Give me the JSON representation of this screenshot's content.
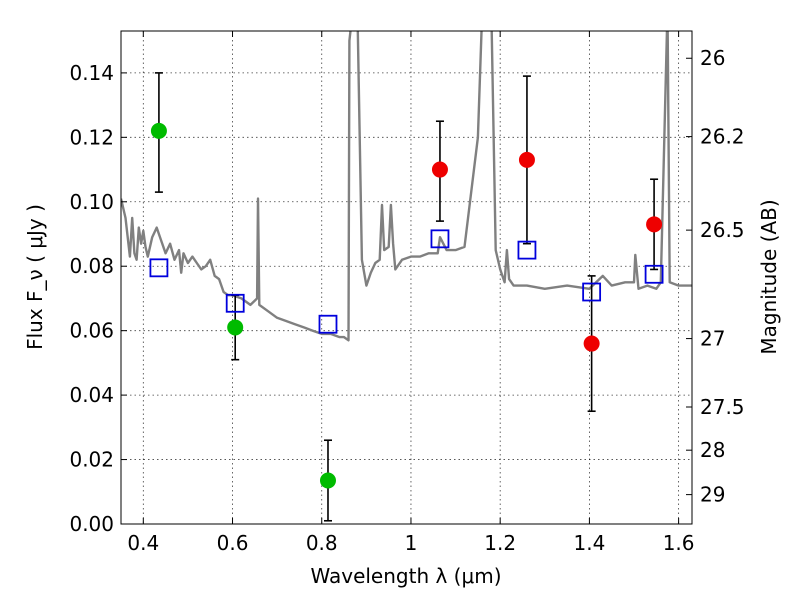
{
  "chart_data": {
    "type": "scatter",
    "xlabel": "Wavelength  λ (μm)",
    "ylabel": "Flux  F_ν  ( μJy )",
    "ylabel_right": "Magnitude (AB)",
    "xlim": [
      0.35,
      1.63
    ],
    "ylim": [
      0.0,
      0.153
    ],
    "grid": true,
    "x_ticks": [
      0.4,
      0.6,
      0.8,
      1.0,
      1.2,
      1.4,
      1.6
    ],
    "x_tick_labels": [
      "0.4",
      "0.6",
      "0.8",
      "1",
      "1.2",
      "1.4",
      "1.6"
    ],
    "y_ticks": [
      0.0,
      0.02,
      0.04,
      0.06,
      0.08,
      0.1,
      0.12,
      0.14
    ],
    "y_tick_labels": [
      "0.00",
      "0.02",
      "0.04",
      "0.06",
      "0.08",
      "0.10",
      "0.12",
      "0.14"
    ],
    "right_ticks": [
      {
        "label": "26",
        "mag": 26.0
      },
      {
        "label": "26.2",
        "mag": 26.2
      },
      {
        "label": "26.5",
        "mag": 26.5
      },
      {
        "label": "27",
        "mag": 27.0
      },
      {
        "label": "27.5",
        "mag": 27.5
      },
      {
        "label": "28",
        "mag": 28.0
      },
      {
        "label": "29",
        "mag": 29.0
      }
    ],
    "series": [
      {
        "color": "#00bb00",
        "marker": "circle",
        "points": [
          {
            "x": 0.435,
            "y": 0.122,
            "lo": 0.103,
            "hi": 0.14
          },
          {
            "x": 0.606,
            "y": 0.061,
            "lo": 0.051,
            "hi": 0.071
          },
          {
            "x": 0.814,
            "y": 0.0135,
            "lo": 0.001,
            "hi": 0.026
          }
        ]
      },
      {
        "color": "#ee0000",
        "marker": "circle",
        "points": [
          {
            "x": 1.065,
            "y": 0.11,
            "lo": 0.094,
            "hi": 0.125
          },
          {
            "x": 1.26,
            "y": 0.113,
            "lo": 0.087,
            "hi": 0.139
          },
          {
            "x": 1.405,
            "y": 0.056,
            "lo": 0.035,
            "hi": 0.077
          },
          {
            "x": 1.545,
            "y": 0.093,
            "lo": 0.079,
            "hi": 0.107
          }
        ]
      },
      {
        "color": "#0000dd",
        "marker": "open-square",
        "points": [
          {
            "x": 0.435,
            "y": 0.0795
          },
          {
            "x": 0.606,
            "y": 0.0685
          },
          {
            "x": 0.814,
            "y": 0.062
          },
          {
            "x": 1.065,
            "y": 0.0885
          },
          {
            "x": 1.26,
            "y": 0.085
          },
          {
            "x": 1.405,
            "y": 0.072
          },
          {
            "x": 1.545,
            "y": 0.0775
          }
        ]
      }
    ],
    "model_spectrum": {
      "color": "#808080",
      "x": [
        0.35,
        0.36,
        0.37,
        0.375,
        0.38,
        0.385,
        0.39,
        0.395,
        0.4,
        0.405,
        0.41,
        0.42,
        0.43,
        0.44,
        0.45,
        0.46,
        0.47,
        0.48,
        0.485,
        0.49,
        0.5,
        0.51,
        0.52,
        0.53,
        0.54,
        0.55,
        0.56,
        0.57,
        0.58,
        0.59,
        0.6,
        0.62,
        0.64,
        0.655,
        0.657,
        0.66,
        0.68,
        0.7,
        0.72,
        0.74,
        0.76,
        0.78,
        0.8,
        0.82,
        0.84,
        0.85,
        0.86,
        0.862,
        0.87,
        0.88,
        0.89,
        0.9,
        0.91,
        0.92,
        0.93,
        0.935,
        0.94,
        0.95,
        0.955,
        0.96,
        0.965,
        0.97,
        0.98,
        1.0,
        1.02,
        1.04,
        1.06,
        1.065,
        1.08,
        1.1,
        1.12,
        1.15,
        1.16,
        1.17,
        1.18,
        1.19,
        1.2,
        1.21,
        1.215,
        1.22,
        1.23,
        1.26,
        1.3,
        1.35,
        1.4,
        1.43,
        1.45,
        1.48,
        1.5,
        1.503,
        1.51,
        1.53,
        1.55,
        1.56,
        1.575,
        1.58,
        1.6,
        1.63
      ],
      "y": [
        0.101,
        0.095,
        0.083,
        0.095,
        0.084,
        0.082,
        0.092,
        0.087,
        0.091,
        0.086,
        0.083,
        0.089,
        0.092,
        0.088,
        0.084,
        0.087,
        0.082,
        0.085,
        0.078,
        0.084,
        0.081,
        0.083,
        0.081,
        0.079,
        0.08,
        0.082,
        0.077,
        0.076,
        0.072,
        0.071,
        0.071,
        0.07,
        0.068,
        0.07,
        0.101,
        0.068,
        0.066,
        0.064,
        0.063,
        0.062,
        0.061,
        0.06,
        0.059,
        0.059,
        0.058,
        0.058,
        0.057,
        0.15,
        0.16,
        0.16,
        0.082,
        0.074,
        0.078,
        0.081,
        0.082,
        0.099,
        0.085,
        0.086,
        0.099,
        0.087,
        0.079,
        0.08,
        0.082,
        0.083,
        0.083,
        0.084,
        0.084,
        0.089,
        0.085,
        0.085,
        0.086,
        0.12,
        0.16,
        0.16,
        0.16,
        0.085,
        0.079,
        0.075,
        0.085,
        0.076,
        0.074,
        0.074,
        0.073,
        0.074,
        0.073,
        0.077,
        0.074,
        0.075,
        0.075,
        0.0835,
        0.073,
        0.074,
        0.073,
        0.075,
        0.16,
        0.075,
        0.074,
        0.074
      ]
    }
  }
}
